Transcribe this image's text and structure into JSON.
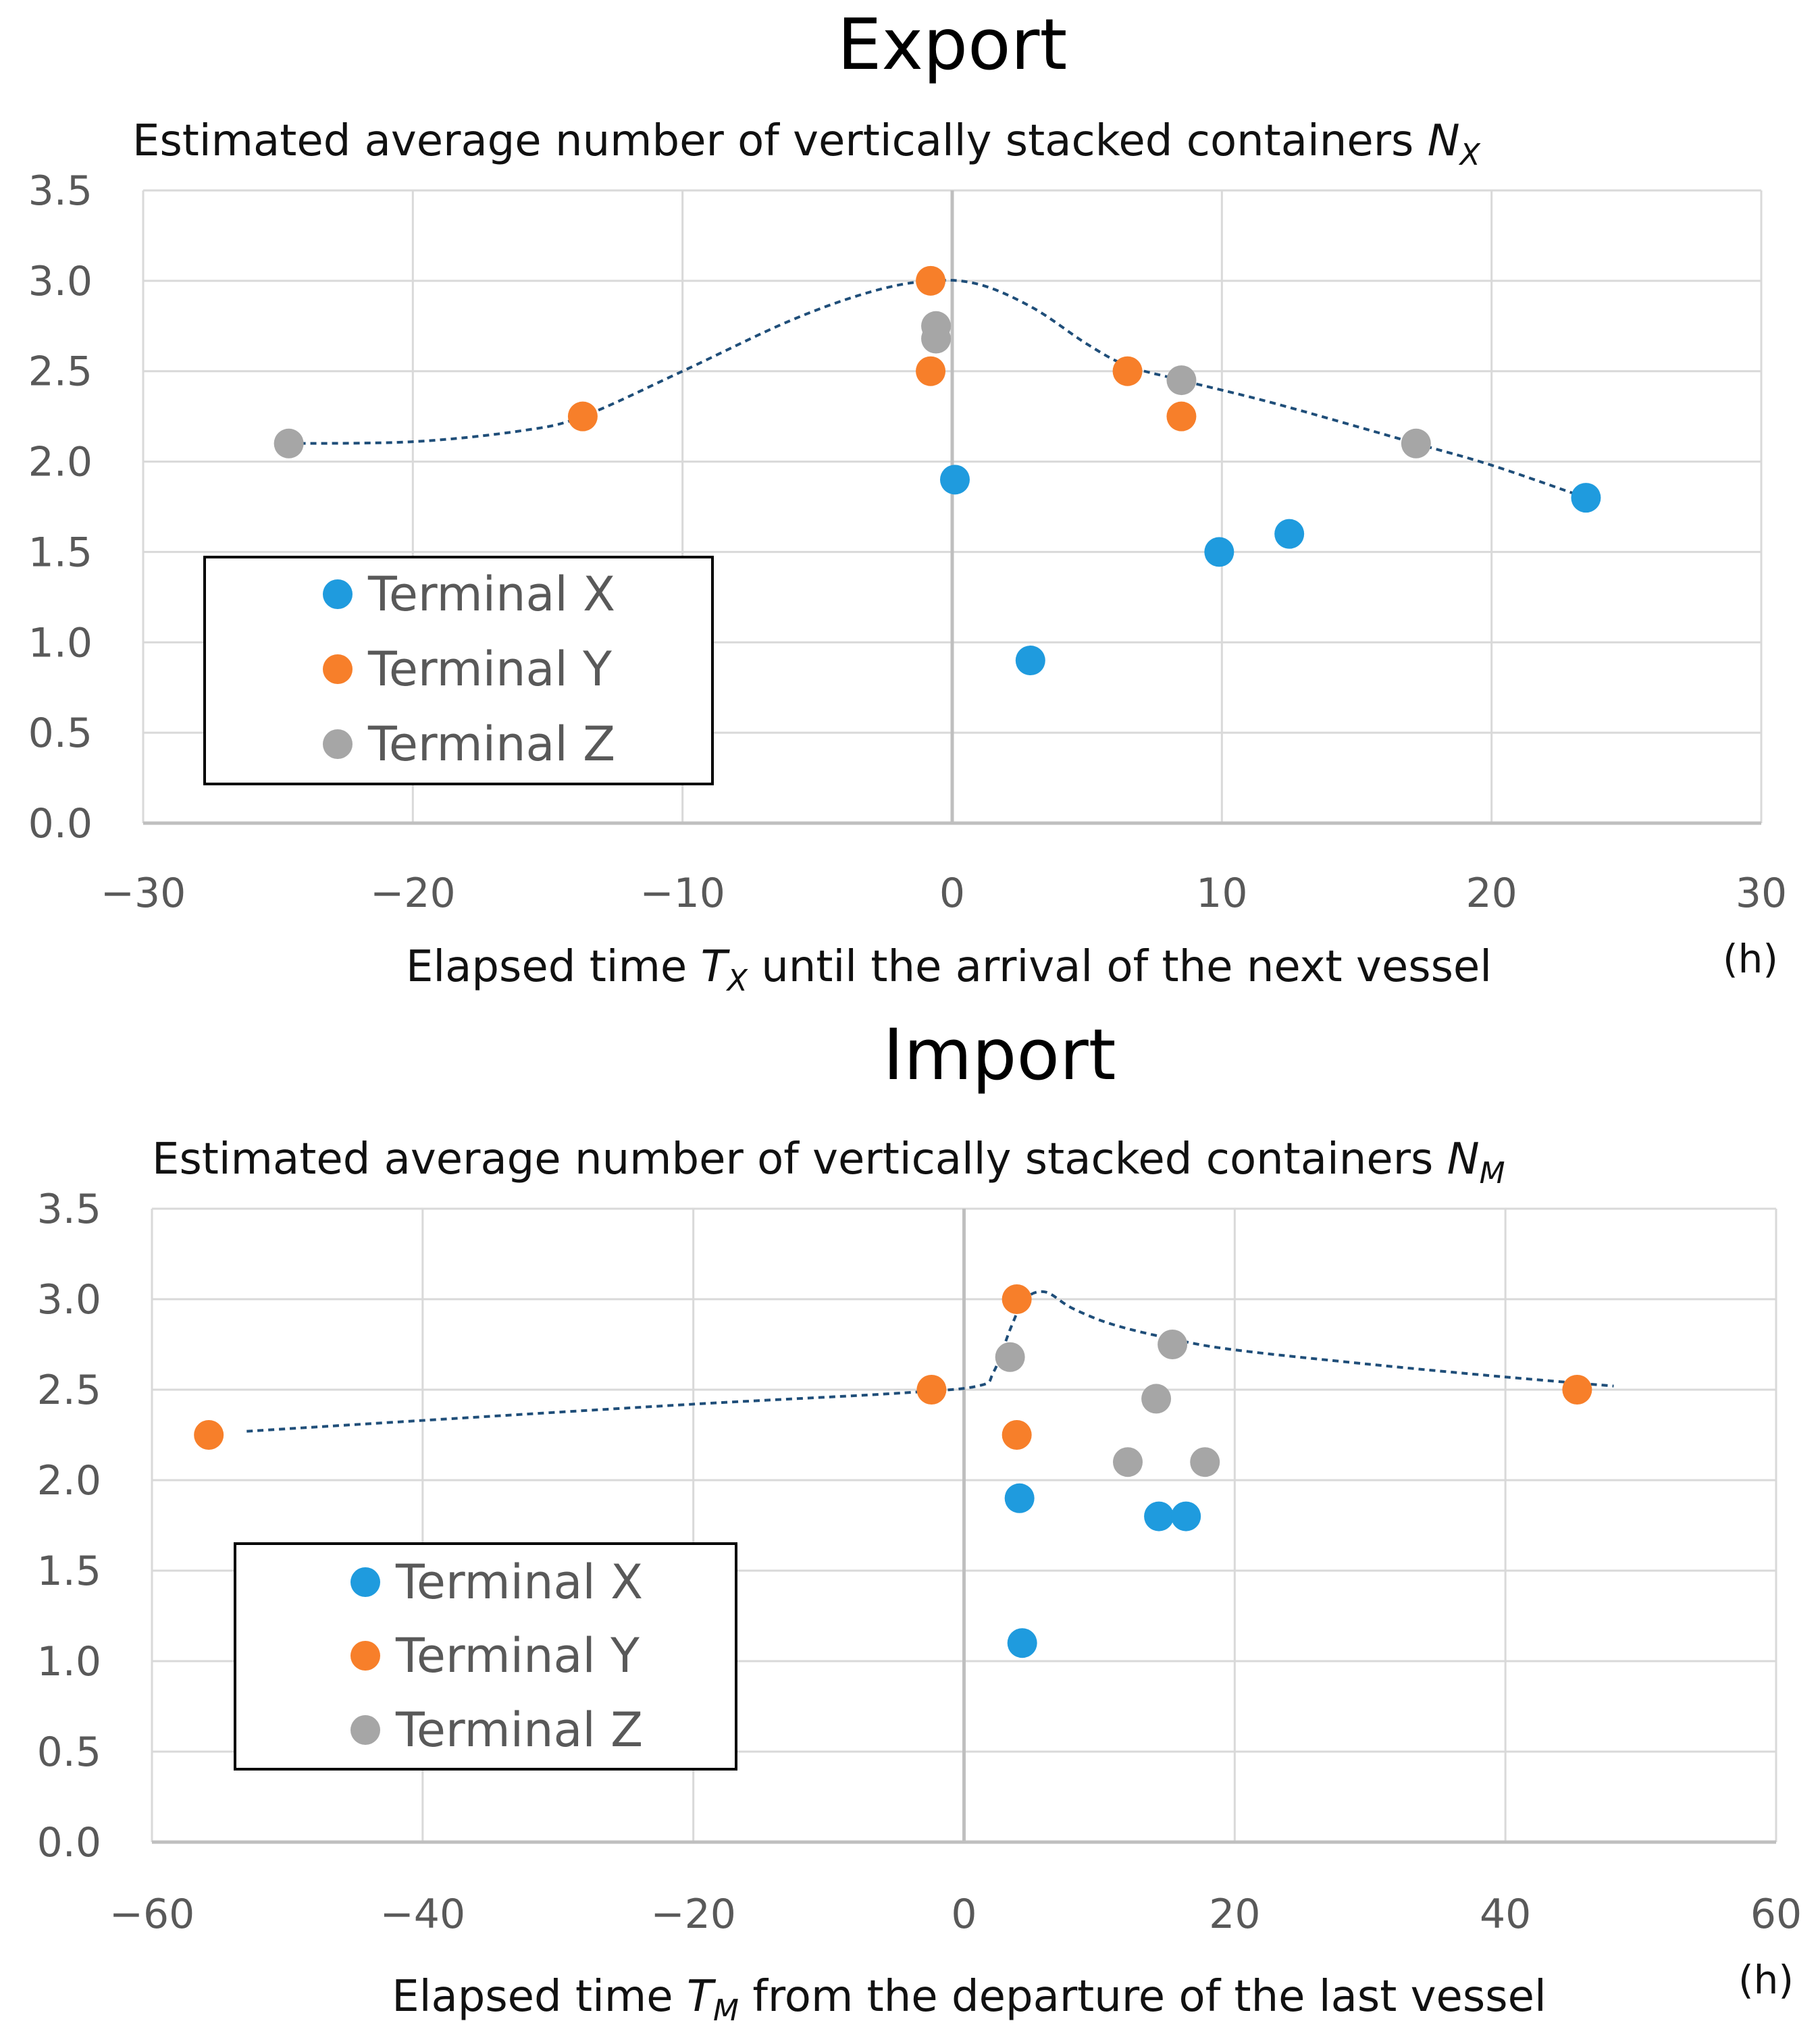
{
  "colors": {
    "terminal_x": "#1f9bde",
    "terminal_y": "#f77f2a",
    "terminal_z": "#a6a6a6",
    "trend": "#1f4e79",
    "grid": "#d9d9d9",
    "zero_axis": "#bfbfbf"
  },
  "chart_data": [
    {
      "type": "scatter",
      "title": "Export",
      "subtitle_prefix": "Estimated average number of vertically stacked containers ",
      "subtitle_symbol": "N",
      "subtitle_subscript": "X",
      "xlabel_prefix": "Elapsed time ",
      "xlabel_symbol": "T",
      "xlabel_subscript": "X",
      "xlabel_suffix": " until the arrival of the next vessel",
      "x_unit": "(h)",
      "xlim": [
        -30,
        30
      ],
      "ylim": [
        0,
        3.5
      ],
      "x_ticks": [
        -30,
        -20,
        -10,
        0,
        10,
        20,
        30
      ],
      "x_tick_labels": [
        "−30",
        "−20",
        "−10",
        "0",
        "10",
        "20",
        "30"
      ],
      "y_ticks": [
        0,
        0.5,
        1,
        1.5,
        2,
        2.5,
        3,
        3.5
      ],
      "y_tick_labels": [
        "0.0",
        "0.5",
        "1.0",
        "1.5",
        "2.0",
        "2.5",
        "3.0",
        "3.5"
      ],
      "grid": true,
      "legend_position": "lower-left",
      "legend": [
        "Terminal X",
        "Terminal Y",
        "Terminal Z"
      ],
      "series": [
        {
          "name": "Terminal X",
          "color_key": "terminal_x",
          "points": [
            [
              0.1,
              1.9
            ],
            [
              2.9,
              0.9
            ],
            [
              9.9,
              1.5
            ],
            [
              12.5,
              1.6
            ],
            [
              23.5,
              1.8
            ]
          ]
        },
        {
          "name": "Terminal Y",
          "color_key": "terminal_y",
          "points": [
            [
              -13.7,
              2.25
            ],
            [
              -0.8,
              3.0
            ],
            [
              -0.8,
              2.5
            ],
            [
              6.5,
              2.5
            ],
            [
              8.5,
              2.25
            ]
          ]
        },
        {
          "name": "Terminal Z",
          "color_key": "terminal_z",
          "points": [
            [
              -24.6,
              2.1
            ],
            [
              -0.6,
              2.75
            ],
            [
              -0.6,
              2.68
            ],
            [
              8.5,
              2.45
            ],
            [
              17.2,
              2.1
            ]
          ]
        }
      ],
      "trend_line": [
        [
          -24.6,
          2.1
        ],
        [
          -20,
          2.11
        ],
        [
          -16,
          2.17
        ],
        [
          -13.7,
          2.25
        ],
        [
          -10,
          2.5
        ],
        [
          -6,
          2.78
        ],
        [
          -3,
          2.94
        ],
        [
          -0.8,
          3.0
        ],
        [
          1,
          2.98
        ],
        [
          3,
          2.85
        ],
        [
          5,
          2.65
        ],
        [
          6.5,
          2.53
        ],
        [
          8.5,
          2.45
        ],
        [
          12,
          2.32
        ],
        [
          17.2,
          2.1
        ],
        [
          20,
          1.98
        ],
        [
          23.5,
          1.8
        ]
      ]
    },
    {
      "type": "scatter",
      "title": "Import",
      "subtitle_prefix": "Estimated average number of vertically stacked containers ",
      "subtitle_symbol": "N",
      "subtitle_subscript": "M",
      "xlabel_prefix": "Elapsed time ",
      "xlabel_symbol": "T",
      "xlabel_subscript": "M",
      "xlabel_suffix": " from the departure of the last vessel",
      "x_unit": "(h)",
      "xlim": [
        -60,
        60
      ],
      "ylim": [
        0,
        3.5
      ],
      "x_ticks": [
        -60,
        -40,
        -20,
        0,
        20,
        40,
        60
      ],
      "x_tick_labels": [
        "−60",
        "−40",
        "−20",
        "0",
        "20",
        "40",
        "60"
      ],
      "y_ticks": [
        0,
        0.5,
        1,
        1.5,
        2,
        2.5,
        3,
        3.5
      ],
      "y_tick_labels": [
        "0.0",
        "0.5",
        "1.0",
        "1.5",
        "2.0",
        "2.5",
        "3.0",
        "3.5"
      ],
      "grid": true,
      "legend_position": "lower-left",
      "legend": [
        "Terminal X",
        "Terminal Y",
        "Terminal Z"
      ],
      "series": [
        {
          "name": "Terminal X",
          "color_key": "terminal_x",
          "points": [
            [
              4.1,
              1.9
            ],
            [
              4.3,
              1.1
            ],
            [
              14.4,
              1.8
            ],
            [
              16.4,
              1.8
            ]
          ]
        },
        {
          "name": "Terminal Y",
          "color_key": "terminal_y",
          "points": [
            [
              -55.8,
              2.25
            ],
            [
              -2.4,
              2.5
            ],
            [
              3.9,
              3.0
            ],
            [
              3.9,
              2.25
            ],
            [
              45.3,
              2.5
            ]
          ]
        },
        {
          "name": "Terminal Z",
          "color_key": "terminal_z",
          "points": [
            [
              3.4,
              2.68
            ],
            [
              12.1,
              2.1
            ],
            [
              14.2,
              2.45
            ],
            [
              15.4,
              2.75
            ],
            [
              17.8,
              2.1
            ]
          ]
        }
      ],
      "trend_line": [
        [
          -53,
          2.27
        ],
        [
          -40,
          2.33
        ],
        [
          -20,
          2.42
        ],
        [
          -5,
          2.48
        ],
        [
          1,
          2.52
        ],
        [
          2.2,
          2.6
        ],
        [
          3.5,
          2.85
        ],
        [
          4.5,
          3.0
        ],
        [
          6,
          3.04
        ],
        [
          8,
          2.95
        ],
        [
          11,
          2.86
        ],
        [
          15.4,
          2.78
        ],
        [
          20,
          2.72
        ],
        [
          30,
          2.64
        ],
        [
          40,
          2.57
        ],
        [
          48,
          2.52
        ]
      ]
    }
  ]
}
